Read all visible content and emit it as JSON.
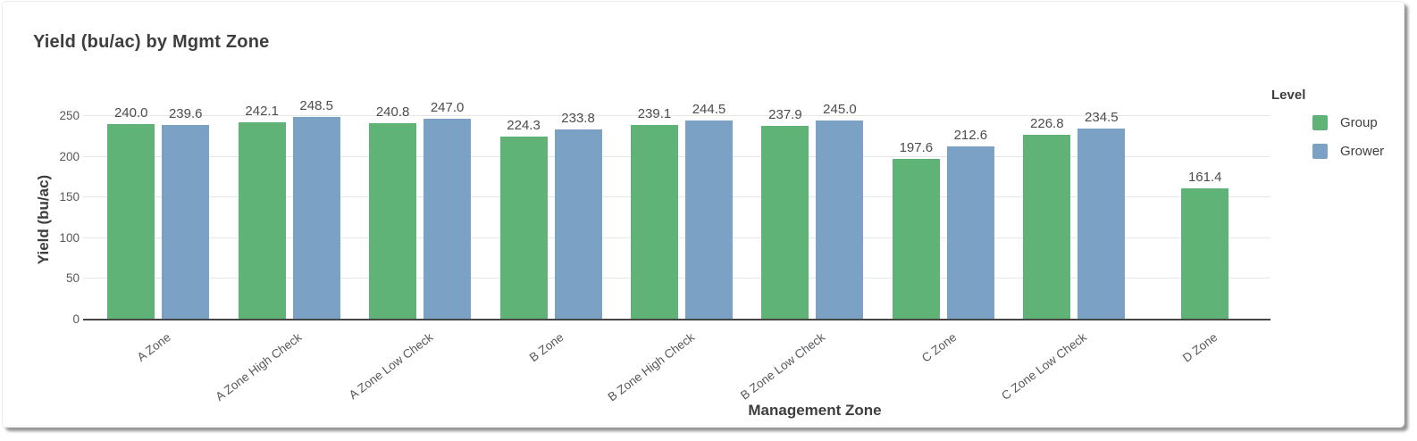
{
  "chart_data": {
    "type": "bar",
    "title": "Yield (bu/ac) by Mgmt Zone",
    "xlabel": "Management Zone",
    "ylabel": "Yield (bu/ac)",
    "ylim": [
      0,
      250
    ],
    "yticks": [
      0,
      50,
      100,
      150,
      200,
      250
    ],
    "grid": "horizontal",
    "value_labels": true,
    "legend_title": "Level",
    "legend_position": "right",
    "categories": [
      "A Zone",
      "A Zone High Check",
      "A Zone Low Check",
      "B Zone",
      "B Zone High Check",
      "B Zone Low Check",
      "C Zone",
      "C Zone Low Check",
      "D Zone"
    ],
    "series": [
      {
        "name": "Group",
        "color": "#5fb377",
        "values": [
          240.0,
          242.1,
          240.8,
          224.3,
          239.1,
          237.9,
          197.6,
          226.8,
          161.4
        ]
      },
      {
        "name": "Grower",
        "color": "#7ba2c5",
        "values": [
          239.6,
          248.5,
          247.0,
          233.8,
          244.5,
          245.0,
          212.6,
          234.5,
          null
        ]
      }
    ]
  }
}
